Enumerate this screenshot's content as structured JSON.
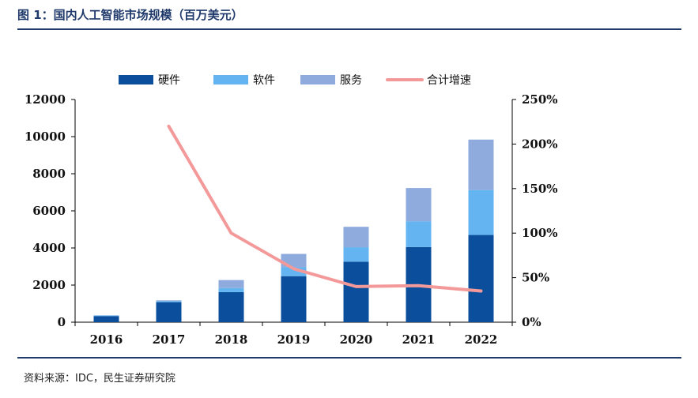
{
  "header": {
    "title": "图 1：国内人工智能市场规模（百万美元）"
  },
  "footer": {
    "source": "资料来源：IDC，民生证券研究院"
  },
  "chart_data": {
    "type": "bar",
    "stacked": true,
    "categories": [
      "2016",
      "2017",
      "2018",
      "2019",
      "2020",
      "2021",
      "2022"
    ],
    "series": [
      {
        "name": "硬件",
        "type": "bar",
        "axis": "left",
        "color": "#0b4f9c",
        "values": [
          330,
          1080,
          1620,
          2480,
          3260,
          4050,
          4700
        ]
      },
      {
        "name": "软件",
        "type": "bar",
        "axis": "left",
        "color": "#63b4f0",
        "values": [
          30,
          60,
          220,
          480,
          780,
          1380,
          2420
        ]
      },
      {
        "name": "服务",
        "type": "bar",
        "axis": "left",
        "color": "#8faadc",
        "values": [
          10,
          40,
          430,
          720,
          1100,
          1800,
          2720
        ]
      },
      {
        "name": "合计增速",
        "type": "line",
        "axis": "right",
        "color": "#f4999a",
        "values": [
          null,
          2.2,
          1.0,
          0.6,
          0.4,
          0.41,
          0.35
        ]
      }
    ],
    "y_left": {
      "min": 0,
      "max": 12000,
      "ticks": [
        "0",
        "2000",
        "4000",
        "6000",
        "8000",
        "10000",
        "12000"
      ]
    },
    "y_right": {
      "min": 0,
      "max": 2.5,
      "ticks": [
        "0%",
        "50%",
        "100%",
        "150%",
        "200%",
        "250%"
      ]
    },
    "legend": "top-center",
    "grid": false
  }
}
